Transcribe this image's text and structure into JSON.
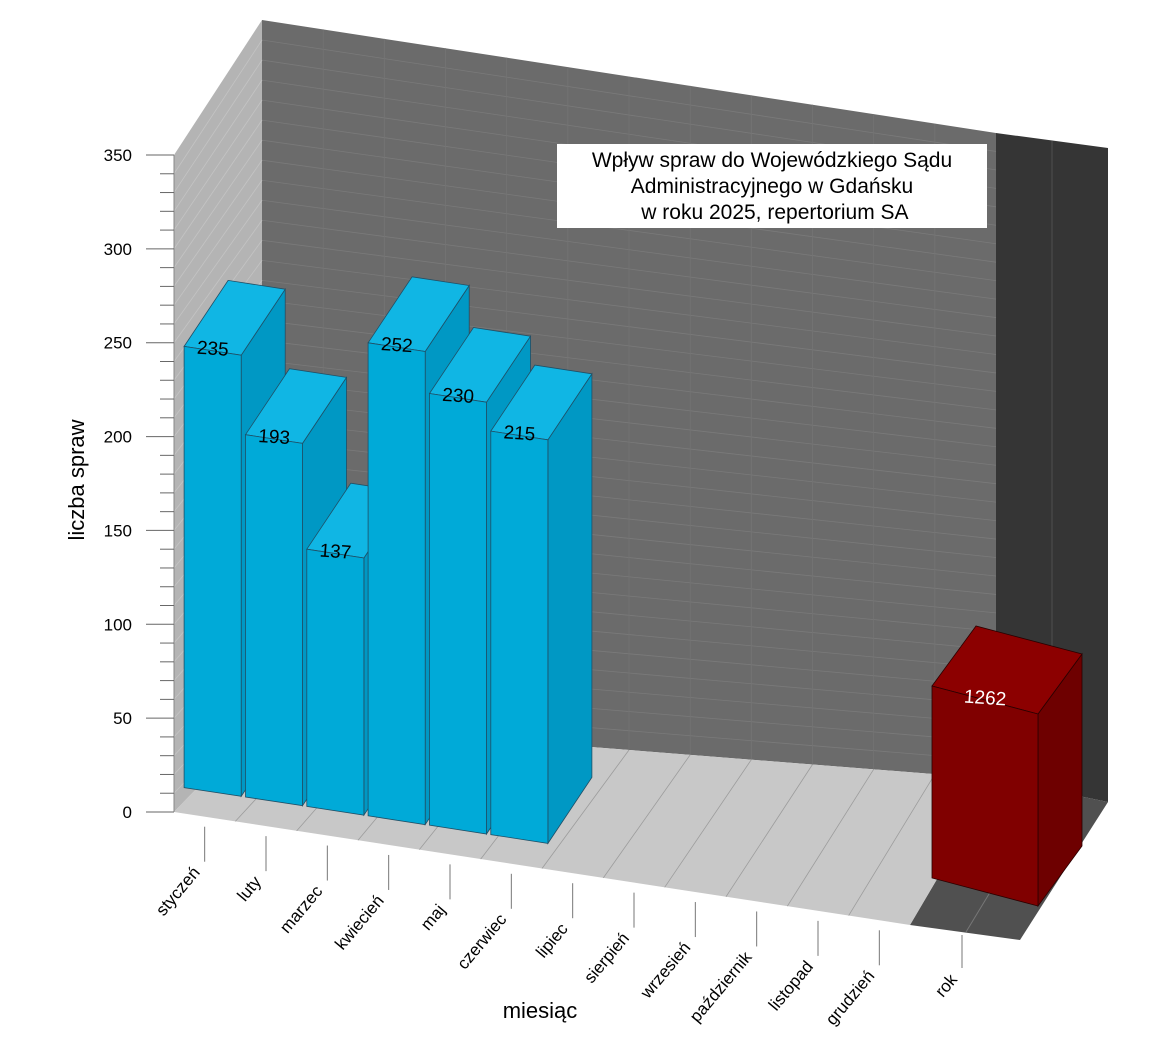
{
  "chart_data": {
    "type": "bar",
    "style": "3d",
    "title_lines": [
      "Wpływ spraw do Wojewódzkiego Sądu",
      "Administracyjnego w Gdańsku",
      " w roku 2025, repertorium SA"
    ],
    "xlabel": "miesiąc",
    "ylabel": "liczba spraw",
    "ylim": [
      0,
      350
    ],
    "yticks": [
      0,
      50,
      100,
      150,
      200,
      250,
      300,
      350
    ],
    "categories": [
      "styczeń",
      "luty",
      "marzec",
      "kwiecień",
      "maj",
      "czerwiec",
      "lipiec",
      "sierpień",
      "wrzesień",
      "październik",
      "listopad",
      "grudzień"
    ],
    "values": [
      235,
      193,
      137,
      252,
      230,
      215,
      null,
      null,
      null,
      null,
      null,
      null
    ],
    "total": {
      "label": "rok",
      "value": 1262
    },
    "colors": {
      "bar_front": "#00aad8",
      "bar_side": "#0098c4",
      "bar_top": "#10b6e4",
      "total_front": "#800000",
      "total_side": "#6e0000",
      "total_top": "#8c0000",
      "back_wall": "#6b6b6b",
      "side_wall": "#b4b4b4",
      "floor": "#c8c8c8",
      "dark_panel": "#353535",
      "dark_floor": "#505050"
    }
  }
}
